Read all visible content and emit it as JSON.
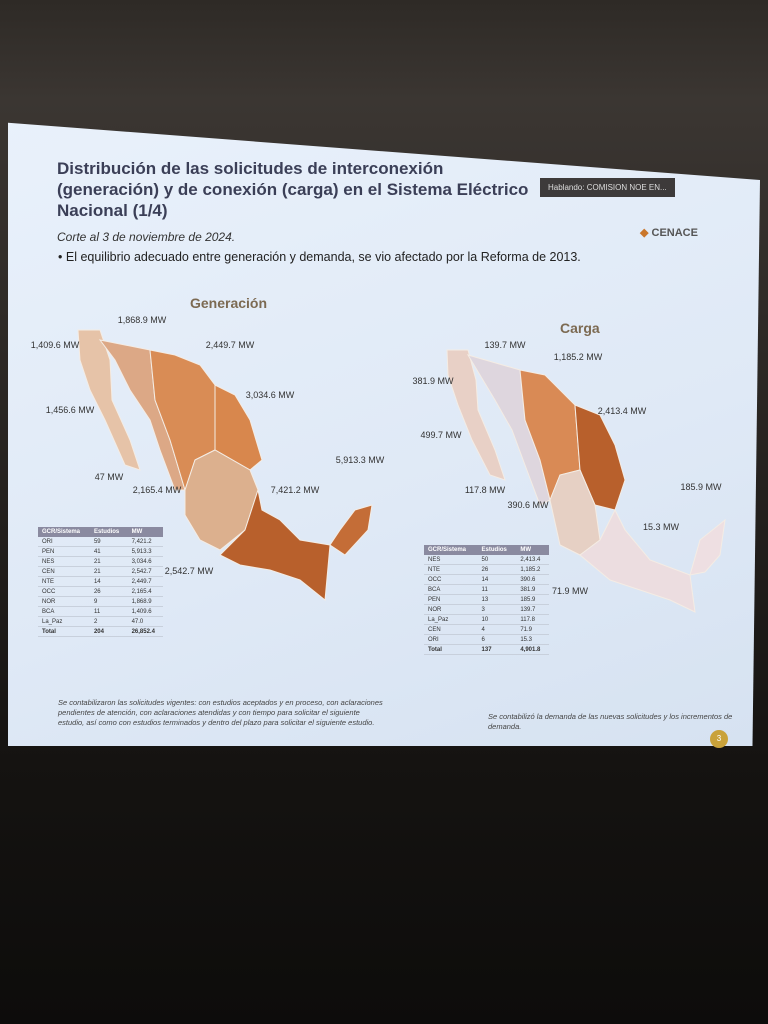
{
  "header": {
    "title": "Distribución de las solicitudes de interconexión (generación) y de conexión (carga) en el Sistema Eléctrico Nacional (1/4)",
    "date": "Corte al 3 de noviembre de 2024.",
    "bullet": "El equilibrio adecuado entre generación y demanda, se vio afectado por la Reforma de 2013."
  },
  "speaker": "Hablando: COMISION NOE EN...",
  "logo": "CENACE",
  "page_number": "3",
  "generacion": {
    "title": "Generación",
    "map_labels": [
      "1,868.9 MW",
      "1,409.6 MW",
      "2,449.7 MW",
      "3,034.6 MW",
      "1,456.6 MW",
      "47 MW",
      "2,165.4 MW",
      "7,421.2 MW",
      "5,913.3 MW",
      "2,542.7 MW"
    ],
    "table": {
      "columns": [
        "GCR/Sistema",
        "Estudios",
        "MW"
      ],
      "rows": [
        [
          "ORI",
          59,
          "7,421.2"
        ],
        [
          "PEN",
          41,
          "5,913.3"
        ],
        [
          "NES",
          21,
          "3,034.6"
        ],
        [
          "CEN",
          21,
          "2,542.7"
        ],
        [
          "NTE",
          14,
          "2,449.7"
        ],
        [
          "OCC",
          26,
          "2,165.4"
        ],
        [
          "NOR",
          9,
          "1,868.9"
        ],
        [
          "BCA",
          11,
          "1,409.6"
        ],
        [
          "La_Paz",
          2,
          "47.0"
        ],
        [
          "Total",
          204,
          "26,852.4"
        ]
      ]
    },
    "note": "Se contabilizaron las solicitudes vigentes: con estudios aceptados y en proceso, con aclaraciones pendientes de atención, con aclaraciones atendidas y con tiempo para solicitar el siguiente estudio, así como con estudios terminados y dentro del plazo para solicitar el siguiente estudio."
  },
  "carga": {
    "title": "Carga",
    "map_labels": [
      "139.7 MW",
      "1,185.2 MW",
      "381.9 MW",
      "2,413.4 MW",
      "499.7 MW",
      "117.8 MW",
      "390.6 MW",
      "185.9 MW",
      "15.3 MW",
      "71.9 MW"
    ],
    "table": {
      "columns": [
        "GCR/Sistema",
        "Estudios",
        "MW"
      ],
      "rows": [
        [
          "NES",
          50,
          "2,413.4"
        ],
        [
          "NTE",
          26,
          "1,185.2"
        ],
        [
          "OCC",
          14,
          "390.6"
        ],
        [
          "BCA",
          11,
          "381.9"
        ],
        [
          "PEN",
          13,
          "185.9"
        ],
        [
          "NOR",
          3,
          "139.7"
        ],
        [
          "La_Paz",
          10,
          "117.8"
        ],
        [
          "CEN",
          4,
          "71.9"
        ],
        [
          "ORI",
          6,
          "15.3"
        ],
        [
          "Total",
          137,
          "4,901.8"
        ]
      ]
    },
    "note": "Se contabilizó la demanda de las nuevas solicitudes y los incrementos de demanda."
  }
}
